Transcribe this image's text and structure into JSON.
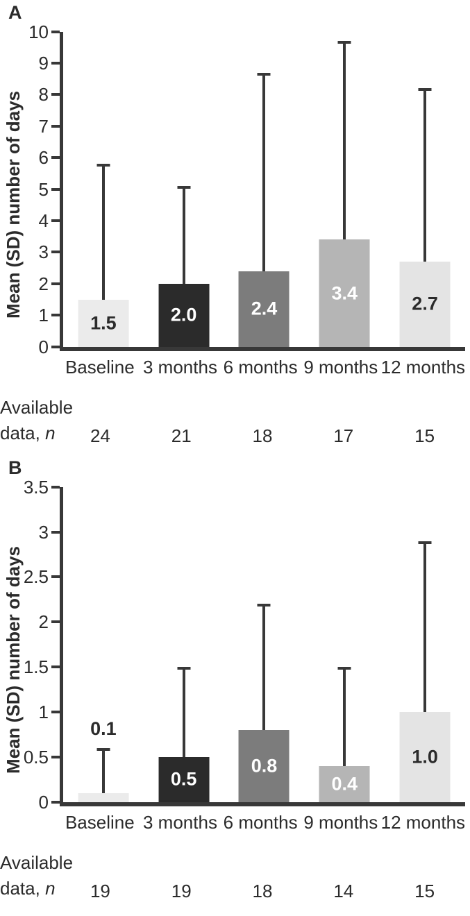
{
  "chart_data": [
    {
      "type": "bar",
      "panel_label": "A",
      "ylabel": "Mean (SD) number of days",
      "xlabel": "",
      "ylim": [
        0,
        10
      ],
      "ytick_interval": 1,
      "yticks": [
        "0",
        "1",
        "2",
        "3",
        "4",
        "5",
        "6",
        "7",
        "8",
        "9",
        "10"
      ],
      "grid": false,
      "legend": "none",
      "categories": [
        "Baseline",
        "3 months",
        "6 months",
        "9 months",
        "12 months"
      ],
      "series": [
        {
          "name": "Mean",
          "values": [
            1.5,
            2.0,
            2.4,
            3.4,
            2.7
          ]
        },
        {
          "name": "Mean + SD (error bar top)",
          "values": [
            5.8,
            5.1,
            8.7,
            9.7,
            8.2
          ]
        }
      ],
      "value_labels": [
        "1.5",
        "2.0",
        "2.4",
        "3.4",
        "2.7"
      ],
      "value_label_pos": [
        "inside",
        "inside",
        "inside",
        "inside",
        "inside"
      ],
      "value_label_colors": [
        "#2b2b2b",
        "#ffffff",
        "#ffffff",
        "#ffffff",
        "#2b2b2b"
      ],
      "bar_colors": [
        "#ebebeb",
        "#2b2b2b",
        "#7c7c7c",
        "#b5b5b5",
        "#e4e4e4"
      ],
      "error_bar_color": "#383838",
      "footnote": {
        "line1": "Available",
        "line2_prefix": "data, ",
        "line2_italic": "n",
        "values": [
          "24",
          "21",
          "18",
          "17",
          "15"
        ]
      }
    },
    {
      "type": "bar",
      "panel_label": "B",
      "ylabel": "Mean (SD) number of days",
      "xlabel": "",
      "ylim": [
        0,
        3.5
      ],
      "ytick_interval": 0.5,
      "yticks": [
        "0",
        "0.5",
        "1",
        "1.5",
        "2",
        "2.5",
        "3",
        "3.5"
      ],
      "grid": false,
      "legend": "none",
      "categories": [
        "Baseline",
        "3 months",
        "6 months",
        "9 months",
        "12 months"
      ],
      "series": [
        {
          "name": "Mean",
          "values": [
            0.1,
            0.5,
            0.8,
            0.4,
            1.0
          ]
        },
        {
          "name": "Mean + SD (error bar top)",
          "values": [
            0.6,
            1.5,
            2.2,
            1.5,
            2.9
          ]
        }
      ],
      "value_labels": [
        "0.1",
        "0.5",
        "0.8",
        "0.4",
        "1.0"
      ],
      "value_label_pos": [
        "above",
        "inside",
        "inside",
        "inside",
        "inside"
      ],
      "value_label_colors": [
        "#2b2b2b",
        "#ffffff",
        "#ffffff",
        "#ffffff",
        "#2b2b2b"
      ],
      "bar_colors": [
        "#ebebeb",
        "#2b2b2b",
        "#7c7c7c",
        "#b5b5b5",
        "#e4e4e4"
      ],
      "error_bar_color": "#383838",
      "footnote": {
        "line1": "Available",
        "line2_prefix": "data, ",
        "line2_italic": "n",
        "values": [
          "19",
          "19",
          "18",
          "14",
          "15"
        ]
      }
    }
  ]
}
